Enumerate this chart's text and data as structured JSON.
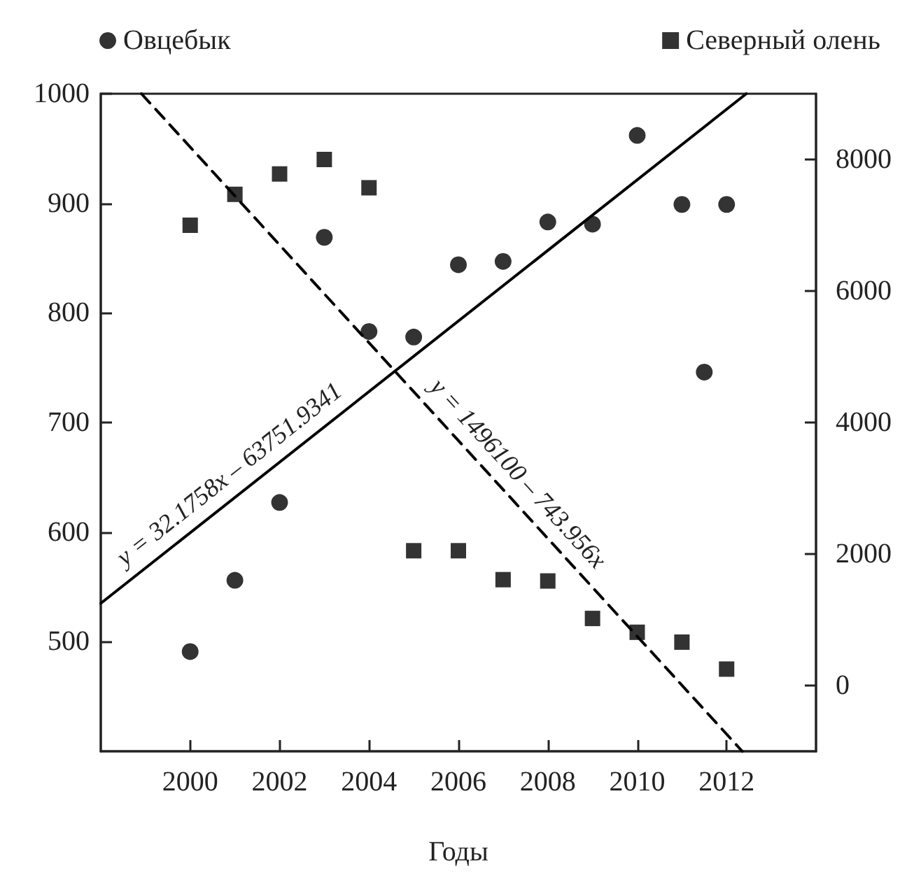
{
  "chart_data": {
    "type": "scatter",
    "xlabel": "Годы",
    "xlim": [
      1998,
      2014
    ],
    "xticks": [
      2000,
      2002,
      2004,
      2006,
      2008,
      2010,
      2012
    ],
    "ylim": [
      400,
      1000
    ],
    "yticks": [
      500,
      600,
      700,
      800,
      900,
      1000
    ],
    "y2lim": [
      -1000,
      9000
    ],
    "y2ticks": [
      0,
      2000,
      4000,
      6000,
      8000
    ],
    "grid": false,
    "legend": "top",
    "annotations": [
      "y = 32.1758x – 63751.9341",
      "y = 1496100 – 743.956x"
    ],
    "series": [
      {
        "name": "Овцебык",
        "marker": "circle",
        "color": "#000000",
        "x": [
          2000,
          2001,
          2002,
          2003,
          2004,
          2005,
          2006,
          2007,
          2008,
          2009,
          2010,
          2011,
          2011.5,
          2012
        ],
        "values": [
          491,
          556,
          627,
          869,
          783,
          778,
          844,
          847,
          883,
          881,
          962,
          899,
          746,
          899
        ]
      },
      {
        "name": "Северный олень",
        "marker": "square",
        "axis": "y2",
        "color": "#000000",
        "x": [
          2000,
          2001,
          2002,
          2003,
          2004,
          2005,
          2006,
          2007,
          2008,
          2009,
          2010,
          2011,
          2012
        ],
        "values": [
          7000,
          7470,
          7780,
          8000,
          7570,
          2050,
          2050,
          1610,
          1590,
          1020,
          810,
          660,
          250
        ]
      },
      {
        "type": "line",
        "marker": "none",
        "line_style": "solid",
        "color": "#000000",
        "x": [
          1998,
          2012.44
        ],
        "values": [
          535,
          1000
        ]
      },
      {
        "type": "line",
        "marker": "none",
        "line_style": "dashed",
        "axis": "y2",
        "color": "#000000",
        "x": [
          1998.91,
          2012.35
        ],
        "values": [
          9000,
          -1000
        ]
      }
    ]
  }
}
